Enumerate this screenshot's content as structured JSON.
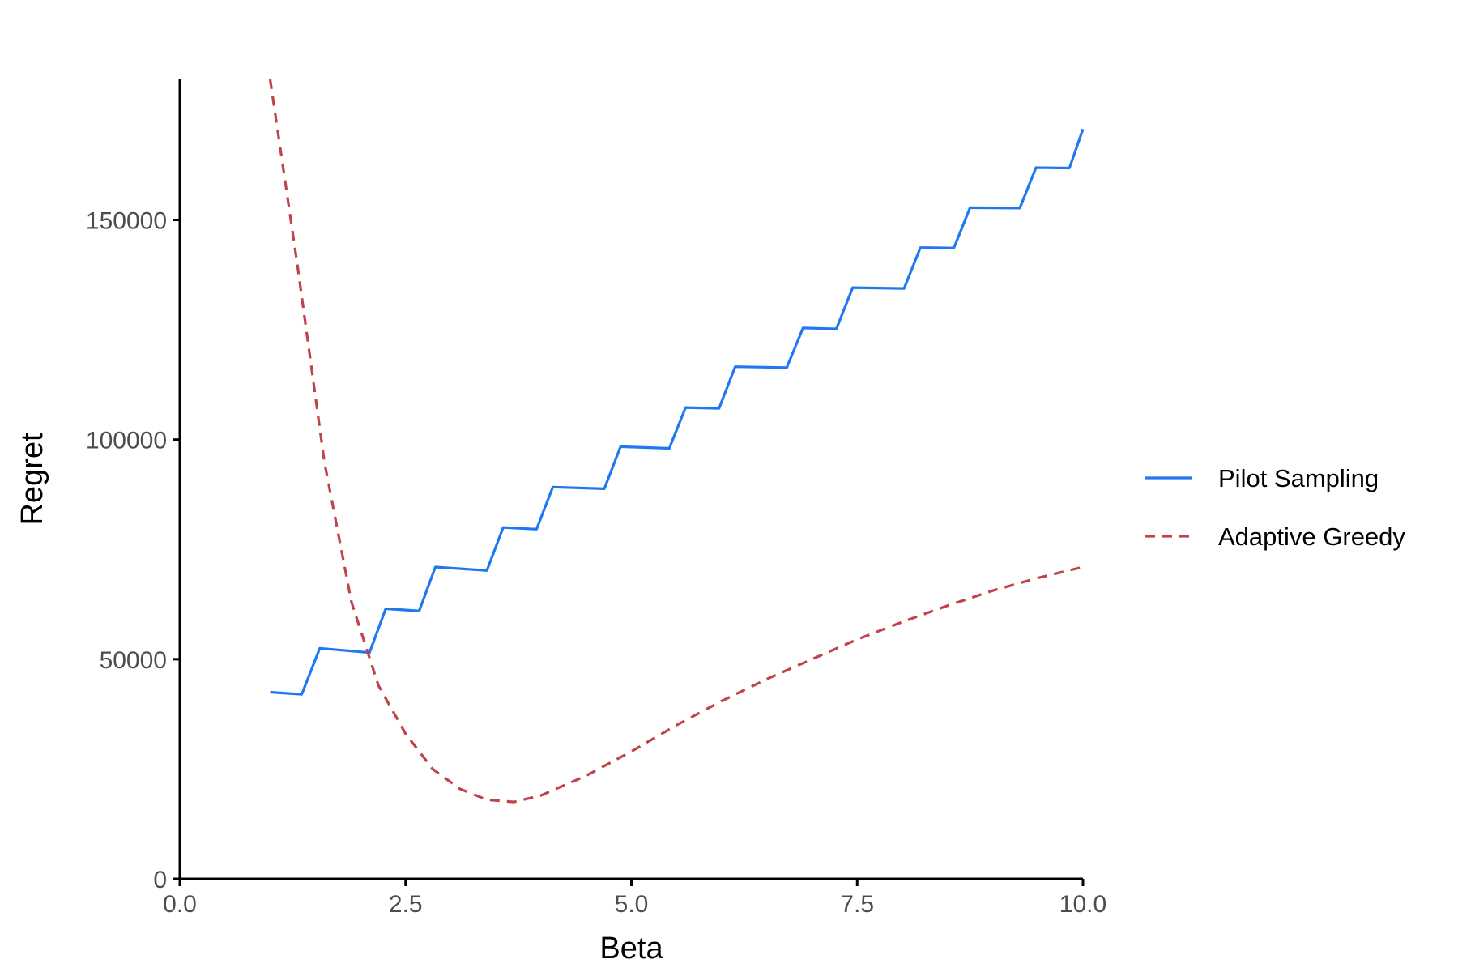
{
  "chart_data": {
    "type": "line",
    "xlabel": "Beta",
    "ylabel": "Regret",
    "xlim": [
      0,
      10
    ],
    "ylim": [
      0,
      182000
    ],
    "xticks": [
      0,
      2.5,
      5,
      7.5,
      10
    ],
    "xtick_labels": [
      "0.0",
      "2.5",
      "5.0",
      "7.5",
      "10.0"
    ],
    "yticks": [
      0,
      50000,
      100000,
      150000
    ],
    "ytick_labels": [
      "0",
      "50000",
      "100000",
      "150000"
    ],
    "grid": false,
    "legend_position": "right",
    "series": [
      {
        "name": "Pilot Sampling",
        "color": "#1f78f0",
        "dash": "solid",
        "x": [
          1.0,
          1.35,
          1.55,
          2.1,
          2.28,
          2.65,
          2.83,
          3.4,
          3.58,
          3.95,
          4.13,
          4.7,
          4.88,
          5.42,
          5.6,
          5.97,
          6.15,
          6.72,
          6.9,
          7.27,
          7.45,
          8.02,
          8.2,
          8.57,
          8.75,
          9.3,
          9.48,
          9.85,
          10.0
        ],
        "y": [
          42500,
          42000,
          52500,
          51500,
          61500,
          61000,
          71000,
          70200,
          80000,
          79600,
          89200,
          88800,
          98400,
          98000,
          107300,
          107100,
          116600,
          116400,
          125400,
          125200,
          134600,
          134400,
          143700,
          143600,
          152800,
          152700,
          161900,
          161800,
          170700
        ]
      },
      {
        "name": "Adaptive Greedy",
        "color": "#c0424a",
        "dash": "dashed",
        "x": [
          1.0,
          1.3,
          1.6,
          1.9,
          2.2,
          2.5,
          2.8,
          3.1,
          3.4,
          3.7,
          4.0,
          4.5,
          5.0,
          5.5,
          6.0,
          6.5,
          7.0,
          7.5,
          8.0,
          8.5,
          9.0,
          9.5,
          10.0
        ],
        "y": [
          182000,
          140000,
          95000,
          63000,
          44000,
          33000,
          25000,
          20500,
          18000,
          17500,
          19000,
          23500,
          29000,
          35000,
          40500,
          45500,
          50000,
          54500,
          58500,
          62200,
          65600,
          68500,
          71000
        ]
      }
    ]
  }
}
